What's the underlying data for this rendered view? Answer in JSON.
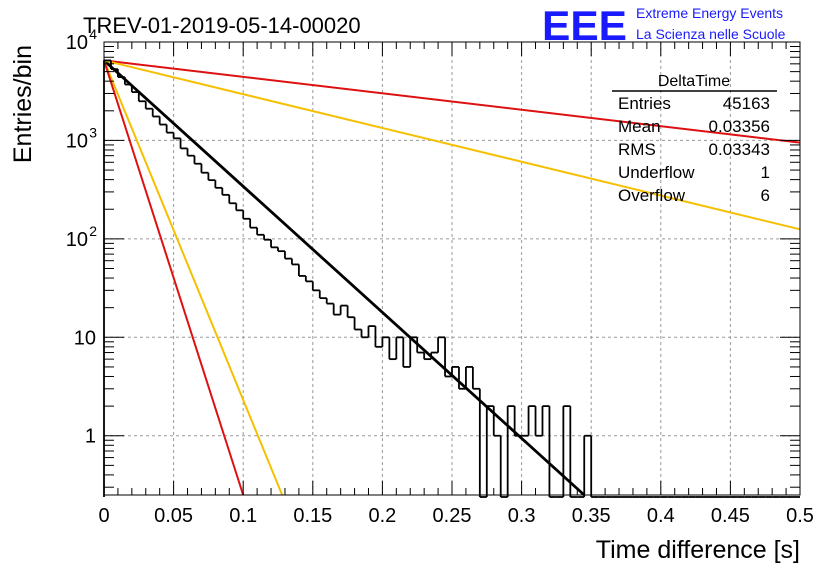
{
  "chart_data": {
    "type": "histogram",
    "title": "TREV-01-2019-05-14-00020",
    "xlabel": "Time difference [s]",
    "ylabel": "Entries/bin",
    "xlim": [
      0,
      0.5
    ],
    "ylim": [
      0.25,
      10000
    ],
    "yscale": "log",
    "grid": true,
    "xticks": [
      "0",
      "0.05",
      "0.1",
      "0.15",
      "0.2",
      "0.25",
      "0.3",
      "0.35",
      "0.4",
      "0.45",
      "0.5"
    ],
    "yticks": [
      {
        "value": 1,
        "base": "1",
        "exp": ""
      },
      {
        "value": 10,
        "base": "10",
        "exp": ""
      },
      {
        "value": 100,
        "base": "10",
        "exp": "2"
      },
      {
        "value": 1000,
        "base": "10",
        "exp": "3"
      },
      {
        "value": 10000,
        "base": "10",
        "exp": "4"
      }
    ],
    "histogram": {
      "bin_width": 0.005,
      "x_start": 0,
      "counts": [
        6500,
        5300,
        4400,
        3700,
        3100,
        2500,
        2100,
        1750,
        1450,
        1200,
        1050,
        830,
        700,
        580,
        470,
        395,
        330,
        280,
        230,
        195,
        160,
        130,
        110,
        98,
        82,
        75,
        63,
        55,
        42,
        37,
        30,
        25,
        22,
        17,
        21,
        16,
        12,
        10,
        13,
        8,
        10,
        6,
        10,
        5,
        10,
        7,
        6,
        7,
        10,
        4,
        5,
        3,
        5,
        3,
        0.1,
        2,
        1,
        0.1,
        2,
        1,
        1,
        2,
        1,
        2,
        0.1,
        0.1,
        2,
        0.1,
        0.1,
        1,
        0.1,
        0.1,
        0.1,
        0.1,
        0.1,
        0.1,
        0.1,
        0.1,
        0.1,
        0.1,
        0.1,
        0.1,
        0.1,
        0.1,
        0.1,
        0.1,
        0.1,
        0.1,
        0.1,
        0.1,
        0.1,
        0.1,
        0.1,
        0.1,
        0.1,
        0.1,
        0.1,
        0.1,
        0.1,
        0.1
      ]
    },
    "lines": [
      {
        "color": "#000000",
        "x": [
          0,
          0.345
        ],
        "y": [
          6500,
          0.25
        ]
      },
      {
        "color": "#dd1111",
        "x": [
          0,
          0.5
        ],
        "y": [
          6500,
          950
        ]
      },
      {
        "color": "#f5c000",
        "x": [
          0,
          0.5
        ],
        "y": [
          6500,
          125
        ]
      },
      {
        "color": "#f5c000",
        "x": [
          0,
          0.128
        ],
        "y": [
          6500,
          0.25
        ]
      },
      {
        "color": "#dd1111",
        "x": [
          0,
          0.1
        ],
        "y": [
          6500,
          0.25
        ]
      }
    ]
  },
  "stats": {
    "title": "DeltaTime",
    "rows": [
      {
        "label": "Entries",
        "value": "45163"
      },
      {
        "label": "Mean",
        "value": "0.03356"
      },
      {
        "label": "RMS",
        "value": "0.03343"
      },
      {
        "label": "Underflow",
        "value": "1"
      },
      {
        "label": "Overflow",
        "value": "6"
      }
    ]
  },
  "logo": {
    "mark": "EEE",
    "line1": "Extreme Energy Events",
    "line2": "La Scienza nelle Scuole",
    "color": "#1a1aff"
  }
}
